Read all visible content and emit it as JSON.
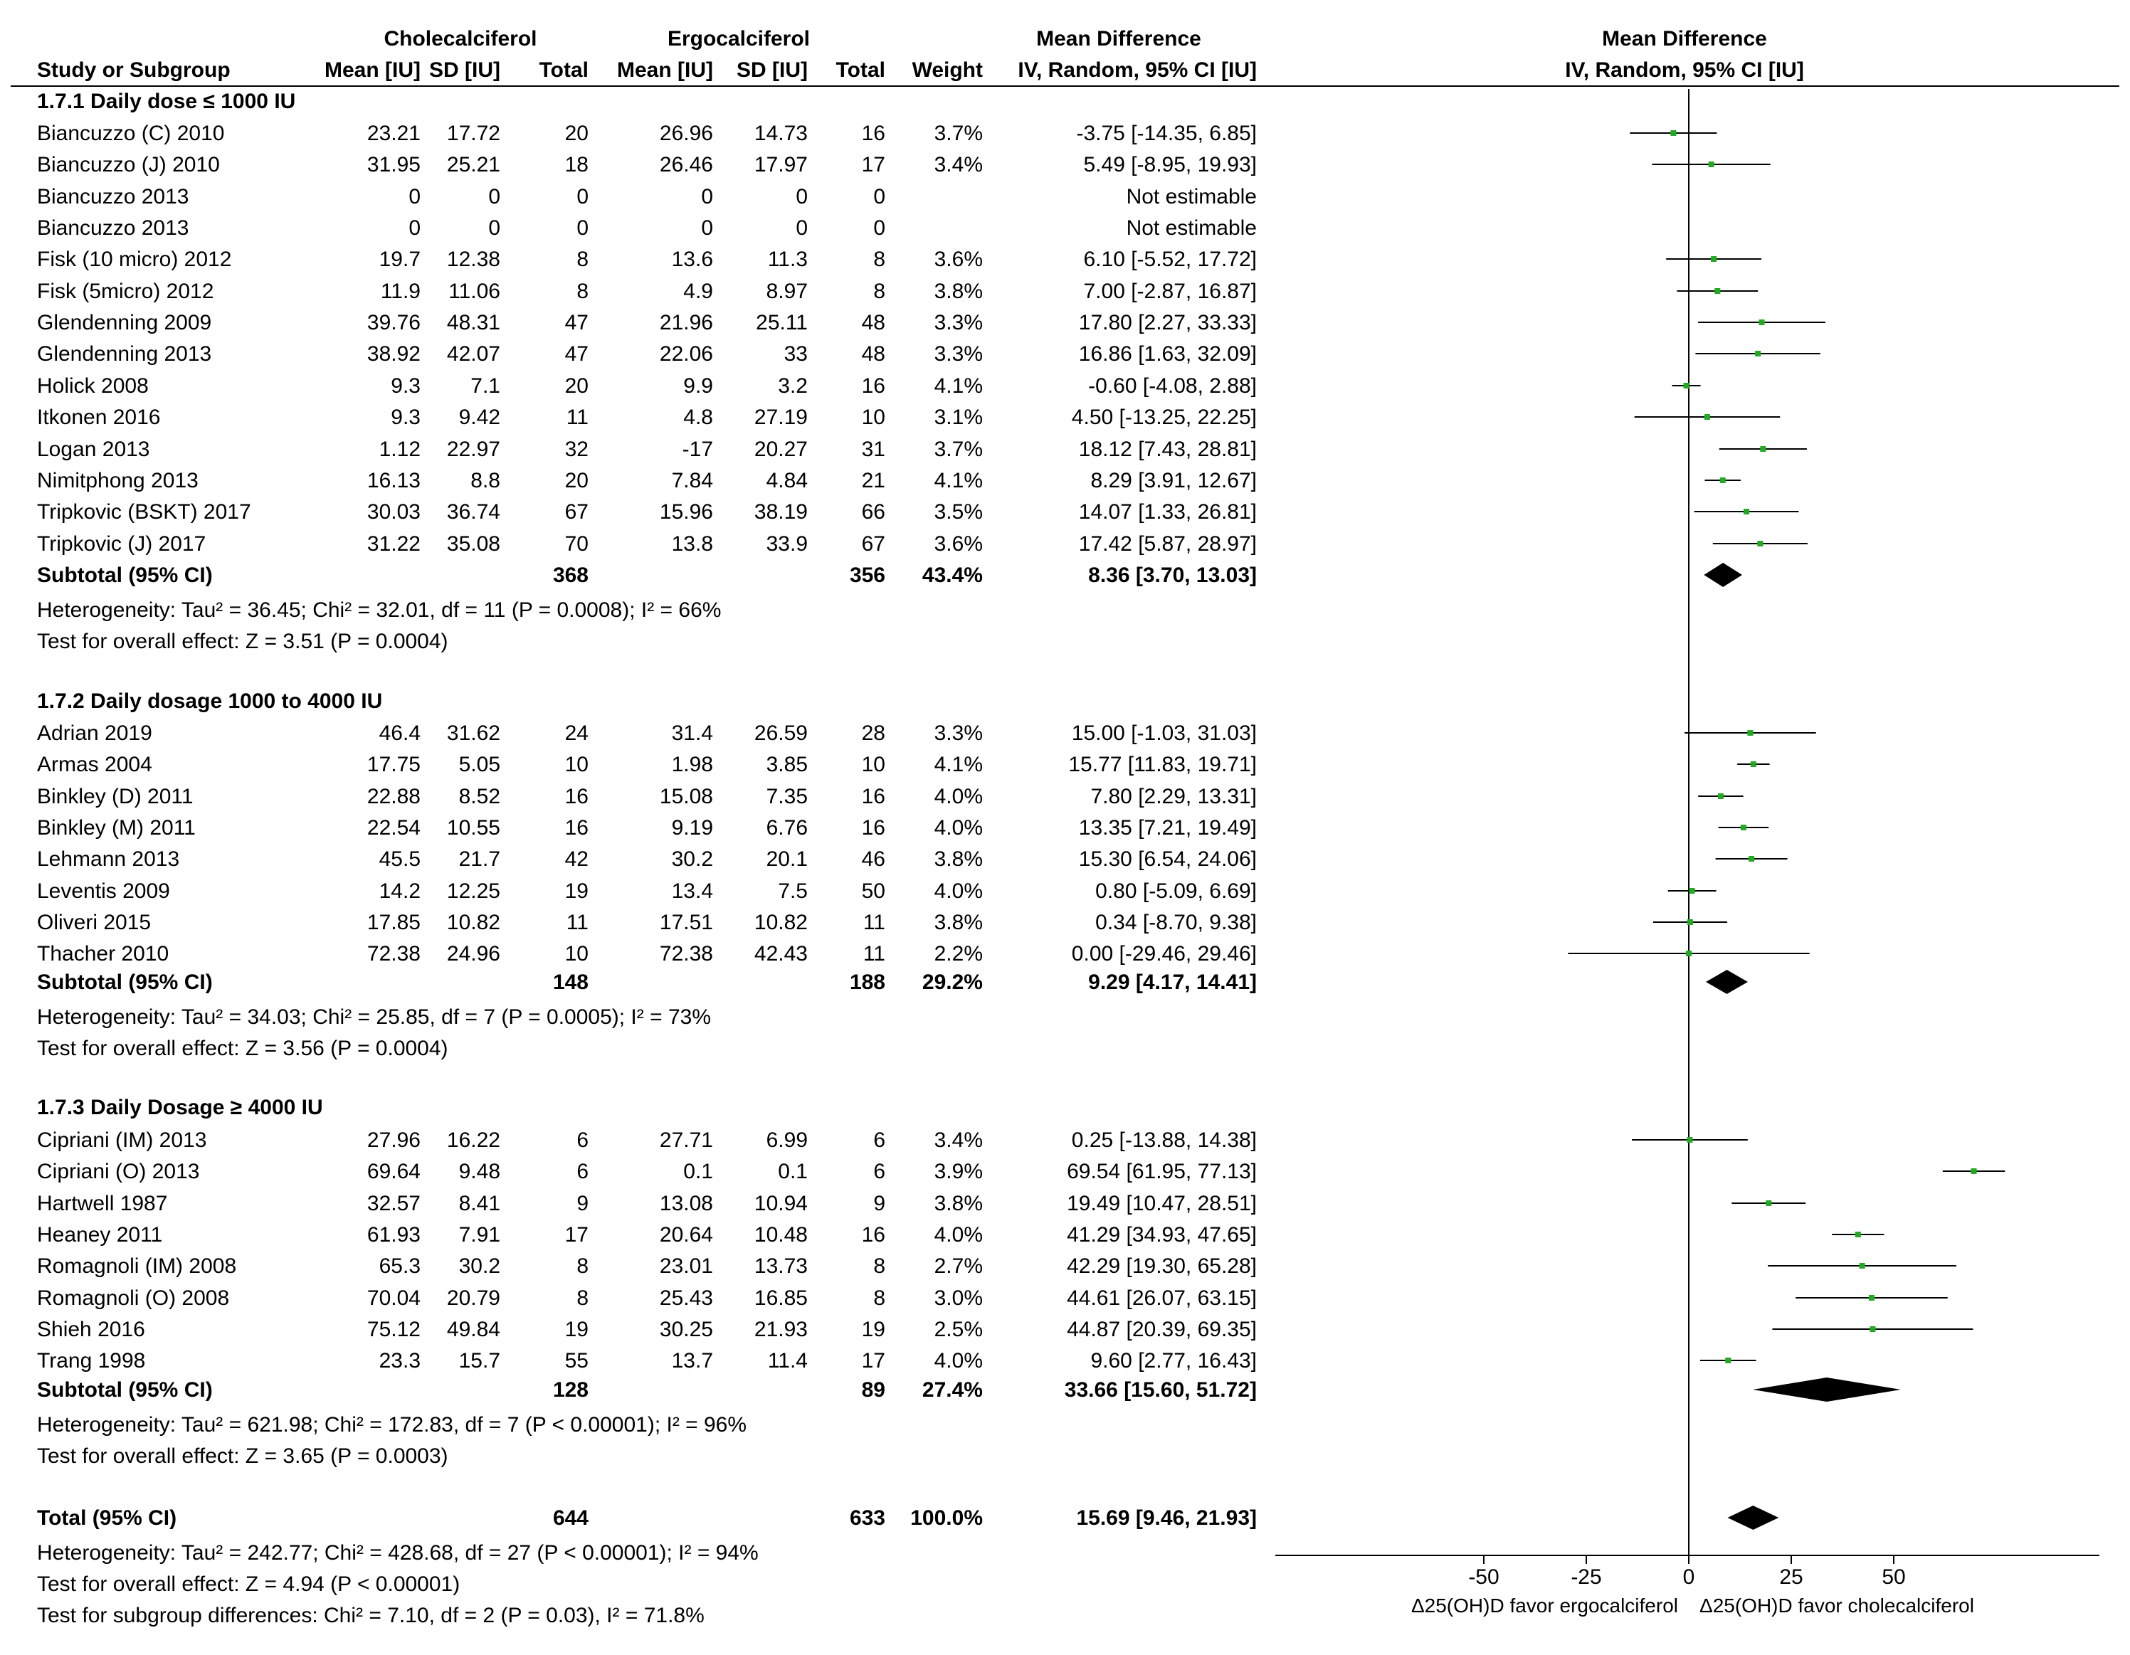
{
  "chart_data": {
    "type": "forest",
    "title": "Mean Difference, IV, Random, 95% CI [IU]",
    "header": {
      "group1": "Cholecalciferol",
      "group2": "Ergocalciferol",
      "md_top": "Mean Difference",
      "study_col": "Study or Subgroup",
      "mean_col": "Mean [IU]",
      "sd_col": "SD [IU]",
      "total_col": "Total",
      "weight_col": "Weight",
      "ci_col": "IV, Random, 95% CI [IU]",
      "plot_top": "Mean Difference",
      "plot_sub": "IV, Random, 95% CI [IU]"
    },
    "subgroups": [
      {
        "title": "1.7.1 Daily dose ≤ 1000 IU",
        "studies": [
          {
            "name": "Biancuzzo (C) 2010",
            "m1": "23.21",
            "sd1": "17.72",
            "n1": "20",
            "m2": "26.96",
            "sd2": "14.73",
            "n2": "16",
            "weight": "3.7%",
            "ci": "-3.75 [-14.35, 6.85]",
            "md": -3.75,
            "lo": -14.35,
            "hi": 6.85
          },
          {
            "name": "Biancuzzo (J) 2010",
            "m1": "31.95",
            "sd1": "25.21",
            "n1": "18",
            "m2": "26.46",
            "sd2": "17.97",
            "n2": "17",
            "weight": "3.4%",
            "ci": "5.49 [-8.95, 19.93]",
            "md": 5.49,
            "lo": -8.95,
            "hi": 19.93
          },
          {
            "name": "Biancuzzo 2013",
            "m1": "0",
            "sd1": "0",
            "n1": "0",
            "m2": "0",
            "sd2": "0",
            "n2": "0",
            "weight": "",
            "ci": "Not estimable",
            "md": null,
            "lo": null,
            "hi": null
          },
          {
            "name": "Biancuzzo 2013",
            "m1": "0",
            "sd1": "0",
            "n1": "0",
            "m2": "0",
            "sd2": "0",
            "n2": "0",
            "weight": "",
            "ci": "Not estimable",
            "md": null,
            "lo": null,
            "hi": null
          },
          {
            "name": "Fisk (10 micro) 2012",
            "m1": "19.7",
            "sd1": "12.38",
            "n1": "8",
            "m2": "13.6",
            "sd2": "11.3",
            "n2": "8",
            "weight": "3.6%",
            "ci": "6.10 [-5.52, 17.72]",
            "md": 6.1,
            "lo": -5.52,
            "hi": 17.72
          },
          {
            "name": "Fisk (5micro) 2012",
            "m1": "11.9",
            "sd1": "11.06",
            "n1": "8",
            "m2": "4.9",
            "sd2": "8.97",
            "n2": "8",
            "weight": "3.8%",
            "ci": "7.00 [-2.87, 16.87]",
            "md": 7.0,
            "lo": -2.87,
            "hi": 16.87
          },
          {
            "name": "Glendenning 2009",
            "m1": "39.76",
            "sd1": "48.31",
            "n1": "47",
            "m2": "21.96",
            "sd2": "25.11",
            "n2": "48",
            "weight": "3.3%",
            "ci": "17.80 [2.27, 33.33]",
            "md": 17.8,
            "lo": 2.27,
            "hi": 33.33
          },
          {
            "name": "Glendenning 2013",
            "m1": "38.92",
            "sd1": "42.07",
            "n1": "47",
            "m2": "22.06",
            "sd2": "33",
            "n2": "48",
            "weight": "3.3%",
            "ci": "16.86 [1.63, 32.09]",
            "md": 16.86,
            "lo": 1.63,
            "hi": 32.09
          },
          {
            "name": "Holick 2008",
            "m1": "9.3",
            "sd1": "7.1",
            "n1": "20",
            "m2": "9.9",
            "sd2": "3.2",
            "n2": "16",
            "weight": "4.1%",
            "ci": "-0.60 [-4.08, 2.88]",
            "md": -0.6,
            "lo": -4.08,
            "hi": 2.88
          },
          {
            "name": "Itkonen 2016",
            "m1": "9.3",
            "sd1": "9.42",
            "n1": "11",
            "m2": "4.8",
            "sd2": "27.19",
            "n2": "10",
            "weight": "3.1%",
            "ci": "4.50 [-13.25, 22.25]",
            "md": 4.5,
            "lo": -13.25,
            "hi": 22.25
          },
          {
            "name": "Logan 2013",
            "m1": "1.12",
            "sd1": "22.97",
            "n1": "32",
            "m2": "-17",
            "sd2": "20.27",
            "n2": "31",
            "weight": "3.7%",
            "ci": "18.12 [7.43, 28.81]",
            "md": 18.12,
            "lo": 7.43,
            "hi": 28.81
          },
          {
            "name": "Nimitphong 2013",
            "m1": "16.13",
            "sd1": "8.8",
            "n1": "20",
            "m2": "7.84",
            "sd2": "4.84",
            "n2": "21",
            "weight": "4.1%",
            "ci": "8.29 [3.91, 12.67]",
            "md": 8.29,
            "lo": 3.91,
            "hi": 12.67
          },
          {
            "name": "Tripkovic (BSKT) 2017",
            "m1": "30.03",
            "sd1": "36.74",
            "n1": "67",
            "m2": "15.96",
            "sd2": "38.19",
            "n2": "66",
            "weight": "3.5%",
            "ci": "14.07 [1.33, 26.81]",
            "md": 14.07,
            "lo": 1.33,
            "hi": 26.81
          },
          {
            "name": "Tripkovic (J) 2017",
            "m1": "31.22",
            "sd1": "35.08",
            "n1": "70",
            "m2": "13.8",
            "sd2": "33.9",
            "n2": "67",
            "weight": "3.6%",
            "ci": "17.42 [5.87, 28.97]",
            "md": 17.42,
            "lo": 5.87,
            "hi": 28.97
          }
        ],
        "subtotal": {
          "label": "Subtotal (95% CI)",
          "n1": "368",
          "n2": "356",
          "weight": "43.4%",
          "ci": "8.36 [3.70, 13.03]",
          "md": 8.36,
          "lo": 3.7,
          "hi": 13.03
        },
        "heterogeneity": "Heterogeneity: Tau² = 36.45; Chi² = 32.01, df = 11 (P = 0.0008); I² = 66%",
        "overall": "Test for overall effect: Z = 3.51 (P = 0.0004)"
      },
      {
        "title": "1.7.2 Daily dosage 1000 to 4000 IU",
        "studies": [
          {
            "name": "Adrian 2019",
            "m1": "46.4",
            "sd1": "31.62",
            "n1": "24",
            "m2": "31.4",
            "sd2": "26.59",
            "n2": "28",
            "weight": "3.3%",
            "ci": "15.00 [-1.03, 31.03]",
            "md": 15.0,
            "lo": -1.03,
            "hi": 31.03
          },
          {
            "name": "Armas 2004",
            "m1": "17.75",
            "sd1": "5.05",
            "n1": "10",
            "m2": "1.98",
            "sd2": "3.85",
            "n2": "10",
            "weight": "4.1%",
            "ci": "15.77 [11.83, 19.71]",
            "md": 15.77,
            "lo": 11.83,
            "hi": 19.71
          },
          {
            "name": "Binkley (D) 2011",
            "m1": "22.88",
            "sd1": "8.52",
            "n1": "16",
            "m2": "15.08",
            "sd2": "7.35",
            "n2": "16",
            "weight": "4.0%",
            "ci": "7.80 [2.29, 13.31]",
            "md": 7.8,
            "lo": 2.29,
            "hi": 13.31
          },
          {
            "name": "Binkley (M) 2011",
            "m1": "22.54",
            "sd1": "10.55",
            "n1": "16",
            "m2": "9.19",
            "sd2": "6.76",
            "n2": "16",
            "weight": "4.0%",
            "ci": "13.35 [7.21, 19.49]",
            "md": 13.35,
            "lo": 7.21,
            "hi": 19.49
          },
          {
            "name": "Lehmann 2013",
            "m1": "45.5",
            "sd1": "21.7",
            "n1": "42",
            "m2": "30.2",
            "sd2": "20.1",
            "n2": "46",
            "weight": "3.8%",
            "ci": "15.30 [6.54, 24.06]",
            "md": 15.3,
            "lo": 6.54,
            "hi": 24.06
          },
          {
            "name": "Leventis 2009",
            "m1": "14.2",
            "sd1": "12.25",
            "n1": "19",
            "m2": "13.4",
            "sd2": "7.5",
            "n2": "50",
            "weight": "4.0%",
            "ci": "0.80 [-5.09, 6.69]",
            "md": 0.8,
            "lo": -5.09,
            "hi": 6.69
          },
          {
            "name": "Oliveri 2015",
            "m1": "17.85",
            "sd1": "10.82",
            "n1": "11",
            "m2": "17.51",
            "sd2": "10.82",
            "n2": "11",
            "weight": "3.8%",
            "ci": "0.34 [-8.70, 9.38]",
            "md": 0.34,
            "lo": -8.7,
            "hi": 9.38
          },
          {
            "name": "Thacher 2010",
            "m1": "72.38",
            "sd1": "24.96",
            "n1": "10",
            "m2": "72.38",
            "sd2": "42.43",
            "n2": "11",
            "weight": "2.2%",
            "ci": "0.00 [-29.46, 29.46]",
            "md": 0.0,
            "lo": -29.46,
            "hi": 29.46
          }
        ],
        "subtotal": {
          "label": "Subtotal (95% CI)",
          "n1": "148",
          "n2": "188",
          "weight": "29.2%",
          "ci": "9.29 [4.17, 14.41]",
          "md": 9.29,
          "lo": 4.17,
          "hi": 14.41
        },
        "heterogeneity": "Heterogeneity: Tau² = 34.03; Chi² = 25.85, df = 7 (P = 0.0005); I² = 73%",
        "overall": "Test for overall effect: Z = 3.56 (P = 0.0004)"
      },
      {
        "title": "1.7.3 Daily Dosage ≥ 4000 IU",
        "studies": [
          {
            "name": "Cipriani (IM) 2013",
            "m1": "27.96",
            "sd1": "16.22",
            "n1": "6",
            "m2": "27.71",
            "sd2": "6.99",
            "n2": "6",
            "weight": "3.4%",
            "ci": "0.25 [-13.88, 14.38]",
            "md": 0.25,
            "lo": -13.88,
            "hi": 14.38
          },
          {
            "name": "Cipriani (O) 2013",
            "m1": "69.64",
            "sd1": "9.48",
            "n1": "6",
            "m2": "0.1",
            "sd2": "0.1",
            "n2": "6",
            "weight": "3.9%",
            "ci": "69.54 [61.95, 77.13]",
            "md": 69.54,
            "lo": 61.95,
            "hi": 77.13
          },
          {
            "name": "Hartwell 1987",
            "m1": "32.57",
            "sd1": "8.41",
            "n1": "9",
            "m2": "13.08",
            "sd2": "10.94",
            "n2": "9",
            "weight": "3.8%",
            "ci": "19.49 [10.47, 28.51]",
            "md": 19.49,
            "lo": 10.47,
            "hi": 28.51
          },
          {
            "name": "Heaney 2011",
            "m1": "61.93",
            "sd1": "7.91",
            "n1": "17",
            "m2": "20.64",
            "sd2": "10.48",
            "n2": "16",
            "weight": "4.0%",
            "ci": "41.29 [34.93, 47.65]",
            "md": 41.29,
            "lo": 34.93,
            "hi": 47.65
          },
          {
            "name": "Romagnoli (IM) 2008",
            "m1": "65.3",
            "sd1": "30.2",
            "n1": "8",
            "m2": "23.01",
            "sd2": "13.73",
            "n2": "8",
            "weight": "2.7%",
            "ci": "42.29 [19.30, 65.28]",
            "md": 42.29,
            "lo": 19.3,
            "hi": 65.28
          },
          {
            "name": "Romagnoli (O) 2008",
            "m1": "70.04",
            "sd1": "20.79",
            "n1": "8",
            "m2": "25.43",
            "sd2": "16.85",
            "n2": "8",
            "weight": "3.0%",
            "ci": "44.61 [26.07, 63.15]",
            "md": 44.61,
            "lo": 26.07,
            "hi": 63.15
          },
          {
            "name": "Shieh 2016",
            "m1": "75.12",
            "sd1": "49.84",
            "n1": "19",
            "m2": "30.25",
            "sd2": "21.93",
            "n2": "19",
            "weight": "2.5%",
            "ci": "44.87 [20.39, 69.35]",
            "md": 44.87,
            "lo": 20.39,
            "hi": 69.35
          },
          {
            "name": "Trang 1998",
            "m1": "23.3",
            "sd1": "15.7",
            "n1": "55",
            "m2": "13.7",
            "sd2": "11.4",
            "n2": "17",
            "weight": "4.0%",
            "ci": "9.60 [2.77, 16.43]",
            "md": 9.6,
            "lo": 2.77,
            "hi": 16.43
          }
        ],
        "subtotal": {
          "label": "Subtotal (95% CI)",
          "n1": "128",
          "n2": "89",
          "weight": "27.4%",
          "ci": "33.66 [15.60, 51.72]",
          "md": 33.66,
          "lo": 15.6,
          "hi": 51.72
        },
        "heterogeneity": "Heterogeneity: Tau² = 621.98; Chi² = 172.83, df = 7 (P < 0.00001); I² = 96%",
        "overall": "Test for overall effect: Z = 3.65 (P = 0.0003)"
      }
    ],
    "total": {
      "label": "Total (95% CI)",
      "n1": "644",
      "n2": "633",
      "weight": "100.0%",
      "ci": "15.69 [9.46, 21.93]",
      "md": 15.69,
      "lo": 9.46,
      "hi": 21.93
    },
    "footer": [
      "Heterogeneity: Tau² = 242.77; Chi² = 428.68, df = 27 (P < 0.00001); I² = 94%",
      "Test for overall effect: Z = 4.94 (P < 0.00001)",
      "Test for subgroup differences: Chi² = 7.10, df = 2 (P = 0.03), I² = 71.8%"
    ],
    "x_axis": {
      "ticks": [
        -50,
        -25,
        0,
        25,
        50
      ],
      "tick_labels": [
        "-50",
        "-25",
        "0",
        "25",
        "50"
      ],
      "range": [
        -100,
        100
      ],
      "label_left": "Δ25(OH)D favor ergocalciferol",
      "label_right": "Δ25(OH)D favor cholecalciferol"
    },
    "colors": {
      "point": "#22aa22",
      "line": "#000000",
      "diamond": "#000000"
    }
  }
}
